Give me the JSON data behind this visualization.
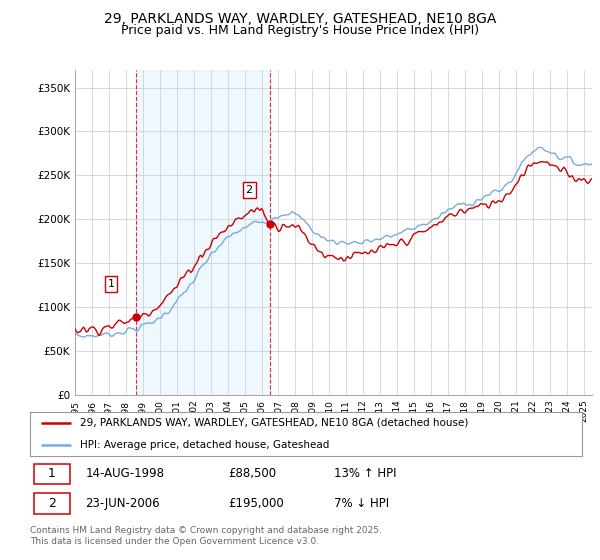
{
  "title": "29, PARKLANDS WAY, WARDLEY, GATESHEAD, NE10 8GA",
  "subtitle": "Price paid vs. HM Land Registry's House Price Index (HPI)",
  "ylabel_ticks": [
    "£0",
    "£50K",
    "£100K",
    "£150K",
    "£200K",
    "£250K",
    "£300K",
    "£350K"
  ],
  "ytick_vals": [
    0,
    50000,
    100000,
    150000,
    200000,
    250000,
    300000,
    350000
  ],
  "ylim": [
    0,
    370000
  ],
  "xlim_start": 1995.0,
  "xlim_end": 2025.5,
  "sale1_x": 1998.617,
  "sale1_y": 88500,
  "sale1_label": "1",
  "sale1_date": "14-AUG-1998",
  "sale1_price": "£88,500",
  "sale1_hpi": "13% ↑ HPI",
  "sale2_x": 2006.472,
  "sale2_y": 195000,
  "sale2_label": "2",
  "sale2_date": "23-JUN-2006",
  "sale2_price": "£195,000",
  "sale2_hpi": "7% ↓ HPI",
  "red_color": "#cc0000",
  "blue_color": "#7aabda",
  "shade_color": "#ddeeff",
  "vline_color": "#cc0000",
  "grid_color": "#cccccc",
  "background_color": "#ffffff",
  "legend_label_red": "29, PARKLANDS WAY, WARDLEY, GATESHEAD, NE10 8GA (detached house)",
  "legend_label_blue": "HPI: Average price, detached house, Gateshead",
  "footer_text": "Contains HM Land Registry data © Crown copyright and database right 2025.\nThis data is licensed under the Open Government Licence v3.0.",
  "title_fontsize": 10,
  "subtitle_fontsize": 9,
  "tick_fontsize": 7.5,
  "legend_fontsize": 8
}
